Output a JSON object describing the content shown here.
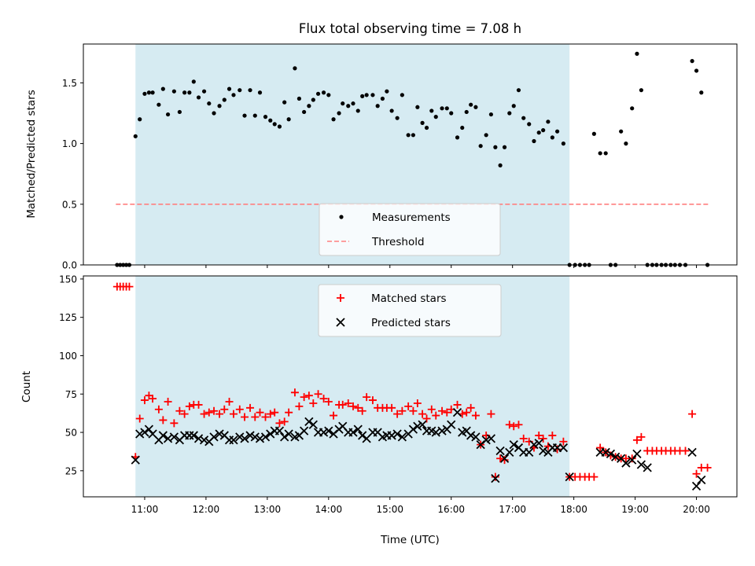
{
  "chart_data": {
    "type": "scatter",
    "title": "Flux total observing time = 7.08 h",
    "xlabel": "Time (UTC)",
    "x_unit": "hours UTC",
    "xlim": [
      10.0,
      20.66
    ],
    "x_ticks": [
      11,
      12,
      13,
      14,
      15,
      16,
      17,
      18,
      19,
      20
    ],
    "x_tick_labels": [
      "11:00",
      "12:00",
      "13:00",
      "14:00",
      "15:00",
      "16:00",
      "17:00",
      "18:00",
      "19:00",
      "20:00"
    ],
    "shaded_interval": {
      "start": 10.85,
      "end": 17.93,
      "color": "#add8e6"
    },
    "panels": [
      {
        "name": "ratio",
        "ylabel": "Matched/Predicted stars",
        "ylim": [
          0,
          1.82
        ],
        "y_ticks": [
          0.0,
          0.5,
          1.0,
          1.5
        ],
        "y_tick_labels": [
          "0.0",
          "0.5",
          "1.0",
          "1.5"
        ],
        "legend": {
          "position": "lower-center",
          "entries": [
            "Measurements",
            "Threshold"
          ]
        },
        "threshold": {
          "label": "Threshold",
          "value": 0.5,
          "x_range": [
            10.53,
            20.2
          ],
          "color": "#ff7f7f"
        },
        "series": [
          {
            "name": "Measurements",
            "marker": "dot",
            "color": "#000000",
            "x": [
              10.55,
              10.6,
              10.65,
              10.7,
              10.75,
              10.85,
              10.92,
              11.0,
              11.07,
              11.13,
              11.23,
              11.3,
              11.38,
              11.48,
              11.57,
              11.65,
              11.73,
              11.8,
              11.88,
              11.97,
              12.05,
              12.13,
              12.22,
              12.3,
              12.38,
              12.45,
              12.55,
              12.63,
              12.72,
              12.8,
              12.88,
              12.97,
              13.05,
              13.12,
              13.2,
              13.28,
              13.35,
              13.45,
              13.52,
              13.6,
              13.68,
              13.75,
              13.83,
              13.92,
              14.0,
              14.08,
              14.17,
              14.23,
              14.32,
              14.4,
              14.48,
              14.55,
              14.62,
              14.72,
              14.8,
              14.88,
              14.95,
              15.03,
              15.12,
              15.2,
              15.3,
              15.38,
              15.45,
              15.53,
              15.6,
              15.68,
              15.75,
              15.85,
              15.93,
              16.0,
              16.1,
              16.18,
              16.25,
              16.32,
              16.4,
              16.48,
              16.57,
              16.65,
              16.72,
              16.8,
              16.87,
              16.95,
              17.02,
              17.1,
              17.18,
              17.27,
              17.35,
              17.43,
              17.5,
              17.58,
              17.65,
              17.73,
              17.83,
              17.93,
              18.02,
              18.1,
              18.18,
              18.25,
              18.33,
              18.43,
              18.52,
              18.6,
              18.68,
              18.77,
              18.85,
              18.95,
              19.03,
              19.1,
              19.2,
              19.28,
              19.35,
              19.43,
              19.5,
              19.58,
              19.65,
              19.73,
              19.82,
              19.93,
              20.0,
              20.08,
              20.18
            ],
            "y": [
              0,
              0,
              0,
              0,
              0,
              1.06,
              1.2,
              1.41,
              1.42,
              1.42,
              1.32,
              1.45,
              1.24,
              1.43,
              1.26,
              1.42,
              1.42,
              1.51,
              1.38,
              1.43,
              1.33,
              1.25,
              1.31,
              1.36,
              1.45,
              1.4,
              1.44,
              1.23,
              1.44,
              1.23,
              1.42,
              1.22,
              1.19,
              1.16,
              1.14,
              1.34,
              1.2,
              1.62,
              1.37,
              1.26,
              1.31,
              1.36,
              1.41,
              1.42,
              1.4,
              1.2,
              1.25,
              1.33,
              1.31,
              1.33,
              1.27,
              1.39,
              1.4,
              1.4,
              1.31,
              1.37,
              1.43,
              1.27,
              1.21,
              1.4,
              1.07,
              1.07,
              1.3,
              1.17,
              1.13,
              1.27,
              1.22,
              1.29,
              1.29,
              1.25,
              1.05,
              1.13,
              1.26,
              1.32,
              1.3,
              0.98,
              1.07,
              1.24,
              0.97,
              0.82,
              0.97,
              1.25,
              1.31,
              1.44,
              1.21,
              1.16,
              1.02,
              1.09,
              1.11,
              1.18,
              1.05,
              1.1,
              1.0,
              0,
              0,
              0,
              0,
              0,
              1.08,
              0.92,
              0.92,
              0,
              0,
              1.1,
              1.0,
              1.29,
              1.74,
              1.44,
              0,
              0,
              0,
              0,
              0,
              0,
              0,
              0,
              0,
              1.68,
              1.6,
              1.42,
              0
            ]
          }
        ]
      },
      {
        "name": "counts",
        "ylabel": "Count",
        "ylim": [
          8,
          152
        ],
        "y_ticks": [
          25,
          50,
          75,
          100,
          125,
          150
        ],
        "y_tick_labels": [
          "25",
          "50",
          "75",
          "100",
          "125",
          "150"
        ],
        "legend": {
          "position": "upper-center",
          "entries": [
            "Matched stars",
            "Predicted stars"
          ]
        },
        "series": [
          {
            "name": "Matched stars",
            "marker": "plus",
            "color": "#ff0000",
            "x": [
              10.55,
              10.6,
              10.65,
              10.7,
              10.75,
              10.85,
              10.92,
              11.0,
              11.07,
              11.13,
              11.23,
              11.3,
              11.38,
              11.48,
              11.57,
              11.65,
              11.73,
              11.8,
              11.88,
              11.97,
              12.05,
              12.13,
              12.22,
              12.3,
              12.38,
              12.45,
              12.55,
              12.63,
              12.72,
              12.8,
              12.88,
              12.97,
              13.05,
              13.12,
              13.2,
              13.28,
              13.35,
              13.45,
              13.52,
              13.6,
              13.68,
              13.75,
              13.83,
              13.92,
              14.0,
              14.08,
              14.17,
              14.23,
              14.32,
              14.4,
              14.48,
              14.55,
              14.62,
              14.72,
              14.8,
              14.88,
              14.95,
              15.03,
              15.12,
              15.2,
              15.3,
              15.38,
              15.45,
              15.53,
              15.6,
              15.68,
              15.75,
              15.85,
              15.93,
              16.0,
              16.1,
              16.18,
              16.25,
              16.32,
              16.4,
              16.48,
              16.57,
              16.65,
              16.72,
              16.8,
              16.87,
              16.95,
              17.02,
              17.1,
              17.18,
              17.27,
              17.35,
              17.43,
              17.5,
              17.58,
              17.65,
              17.73,
              17.83,
              17.93,
              18.02,
              18.1,
              18.18,
              18.25,
              18.33,
              18.43,
              18.52,
              18.6,
              18.68,
              18.77,
              18.85,
              18.95,
              19.03,
              19.1,
              19.2,
              19.28,
              19.35,
              19.43,
              19.5,
              19.58,
              19.65,
              19.73,
              19.82,
              19.93,
              20.0,
              20.08,
              20.18
            ],
            "y": [
              145,
              145,
              145,
              145,
              145,
              34,
              59,
              71,
              74,
              72,
              65,
              58,
              70,
              56,
              64,
              62,
              67,
              68,
              68,
              62,
              63,
              64,
              62,
              65,
              70,
              62,
              65,
              60,
              66,
              60,
              63,
              60,
              62,
              63,
              56,
              57,
              63,
              76,
              67,
              73,
              74,
              69,
              75,
              72,
              70,
              61,
              68,
              68,
              69,
              67,
              66,
              64,
              73,
              71,
              66,
              66,
              66,
              66,
              62,
              64,
              67,
              64,
              69,
              62,
              59,
              65,
              61,
              64,
              63,
              65,
              68,
              62,
              63,
              66,
              61,
              42,
              48,
              62,
              21,
              33,
              32,
              55,
              54,
              55,
              46,
              44,
              40,
              48,
              46,
              41,
              48,
              39,
              44,
              21,
              21,
              21,
              21,
              21,
              21,
              40,
              37,
              35,
              34,
              33,
              33,
              33,
              45,
              47,
              38,
              38,
              38,
              38,
              38,
              38,
              38,
              38,
              38,
              62,
              23,
              27,
              27
            ]
          },
          {
            "name": "Predicted stars",
            "marker": "x",
            "color": "#000000",
            "x": [
              10.85,
              10.92,
              11.0,
              11.07,
              11.13,
              11.23,
              11.3,
              11.38,
              11.48,
              11.57,
              11.65,
              11.73,
              11.8,
              11.88,
              11.97,
              12.05,
              12.13,
              12.22,
              12.3,
              12.38,
              12.45,
              12.55,
              12.63,
              12.72,
              12.8,
              12.88,
              12.97,
              13.05,
              13.12,
              13.2,
              13.28,
              13.35,
              13.45,
              13.52,
              13.6,
              13.68,
              13.75,
              13.83,
              13.92,
              14.0,
              14.08,
              14.17,
              14.23,
              14.32,
              14.4,
              14.48,
              14.55,
              14.62,
              14.72,
              14.8,
              14.88,
              14.95,
              15.03,
              15.12,
              15.2,
              15.3,
              15.38,
              15.45,
              15.53,
              15.6,
              15.68,
              15.75,
              15.85,
              15.93,
              16.0,
              16.1,
              16.18,
              16.25,
              16.32,
              16.4,
              16.48,
              16.57,
              16.65,
              16.72,
              16.8,
              16.87,
              16.95,
              17.02,
              17.1,
              17.18,
              17.27,
              17.35,
              17.43,
              17.5,
              17.58,
              17.65,
              17.73,
              17.83,
              17.93,
              18.43,
              18.52,
              18.6,
              18.68,
              18.77,
              18.85,
              18.95,
              19.03,
              19.1,
              19.2,
              19.93,
              20.0,
              20.08
            ],
            "y": [
              32,
              49,
              50,
              52,
              49,
              45,
              48,
              46,
              47,
              45,
              48,
              48,
              48,
              46,
              45,
              44,
              47,
              49,
              48,
              45,
              45,
              47,
              46,
              48,
              47,
              46,
              47,
              49,
              51,
              51,
              47,
              49,
              47,
              48,
              51,
              57,
              55,
              50,
              50,
              51,
              49,
              52,
              54,
              50,
              50,
              52,
              48,
              46,
              50,
              50,
              47,
              48,
              48,
              49,
              47,
              49,
              52,
              54,
              55,
              51,
              51,
              50,
              51,
              52,
              55,
              63,
              50,
              51,
              48,
              47,
              42,
              45,
              46,
              20,
              38,
              33,
              37,
              42,
              40,
              37,
              37,
              42,
              43,
              38,
              37,
              40,
              40,
              40,
              21,
              37,
              37,
              36,
              34,
              33,
              30,
              32,
              36,
              29,
              27,
              37,
              15,
              19
            ]
          }
        ]
      }
    ]
  }
}
